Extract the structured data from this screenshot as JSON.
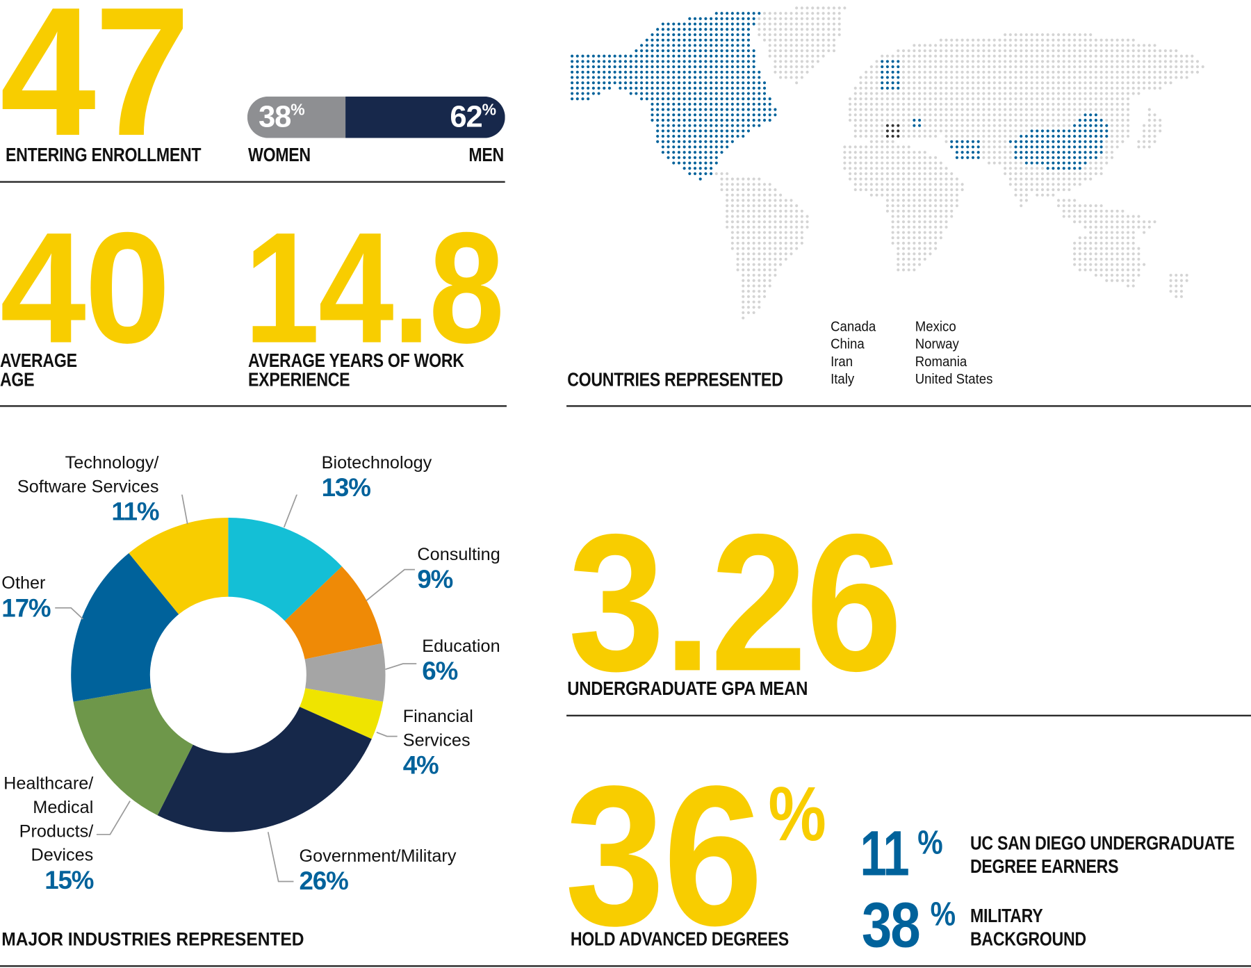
{
  "colors": {
    "yellow": "#f8cd00",
    "blue": "#00629b",
    "navy": "#16284a",
    "gray": "#8e8f92",
    "highlight_country": "#00629b",
    "italy_dot": "#333333",
    "land_dot": "#d4d4d4"
  },
  "enrollment": {
    "value": "47",
    "label": "ENTERING ENROLLMENT"
  },
  "gender": {
    "women": {
      "value": "38",
      "suffix": "%",
      "label": "WOMEN",
      "fraction": 0.38
    },
    "men": {
      "value": "62",
      "suffix": "%",
      "label": "MEN",
      "fraction": 0.62
    }
  },
  "age": {
    "value": "40",
    "label_line1": "AVERAGE",
    "label_line2": "AGE"
  },
  "experience": {
    "value": "14.8",
    "label_line1": "AVERAGE YEARS OF WORK",
    "label_line2": "EXPERIENCE"
  },
  "countries": {
    "label": "COUNTRIES REPRESENTED",
    "col1": [
      "Canada",
      "China",
      "Iran",
      "Italy"
    ],
    "col2": [
      "Mexico",
      "Norway",
      "Romania",
      "United States"
    ],
    "highlighted": [
      "Canada",
      "United States",
      "Mexico",
      "Norway",
      "Romania",
      "Iran",
      "China",
      "Italy"
    ]
  },
  "gpa": {
    "value": "3.26",
    "label": "UNDERGRADUATE GPA MEAN"
  },
  "advanced": {
    "value": "36",
    "suffix": "%",
    "label": "HOLD ADVANCED DEGREES"
  },
  "ucsd": {
    "value": "11",
    "suffix": "%",
    "label_line1": "UC SAN DIEGO UNDERGRADUATE",
    "label_line2": "DEGREE EARNERS"
  },
  "military": {
    "value": "38",
    "suffix": "%",
    "label_line1": "MILITARY",
    "label_line2": "BACKGROUND"
  },
  "industries_title": "MAJOR INDUSTRIES REPRESENTED",
  "chart_data": {
    "type": "pie",
    "donut": true,
    "title": "MAJOR INDUSTRIES REPRESENTED",
    "slices": [
      {
        "label": "Biotechnology",
        "lines": [
          "Biotechnology"
        ],
        "value": 13,
        "pct": "13%",
        "color": "#14bfd6"
      },
      {
        "label": "Consulting",
        "lines": [
          "Consulting"
        ],
        "value": 9,
        "pct": "9%",
        "color": "#ef8a06"
      },
      {
        "label": "Education",
        "lines": [
          "Education"
        ],
        "value": 6,
        "pct": "6%",
        "color": "#a5a5a5"
      },
      {
        "label": "Financial Services",
        "lines": [
          "Financial",
          "Services"
        ],
        "value": 4,
        "pct": "4%",
        "color": "#efe400"
      },
      {
        "label": "Government/Military",
        "lines": [
          "Government/Military"
        ],
        "value": 26,
        "pct": "26%",
        "color": "#16284a"
      },
      {
        "label": "Healthcare/Medical Products/Devices",
        "lines": [
          "Healthcare/",
          "Medical",
          "Products/",
          "Devices"
        ],
        "value": 15,
        "pct": "15%",
        "color": "#6e974a"
      },
      {
        "label": "Other",
        "lines": [
          "Other"
        ],
        "value": 17,
        "pct": "17%",
        "color": "#00629b"
      },
      {
        "label": "Technology/Software Services",
        "lines": [
          "Technology/",
          "Software Services"
        ],
        "value": 11,
        "pct": "11%",
        "color": "#f8cd00"
      }
    ]
  }
}
